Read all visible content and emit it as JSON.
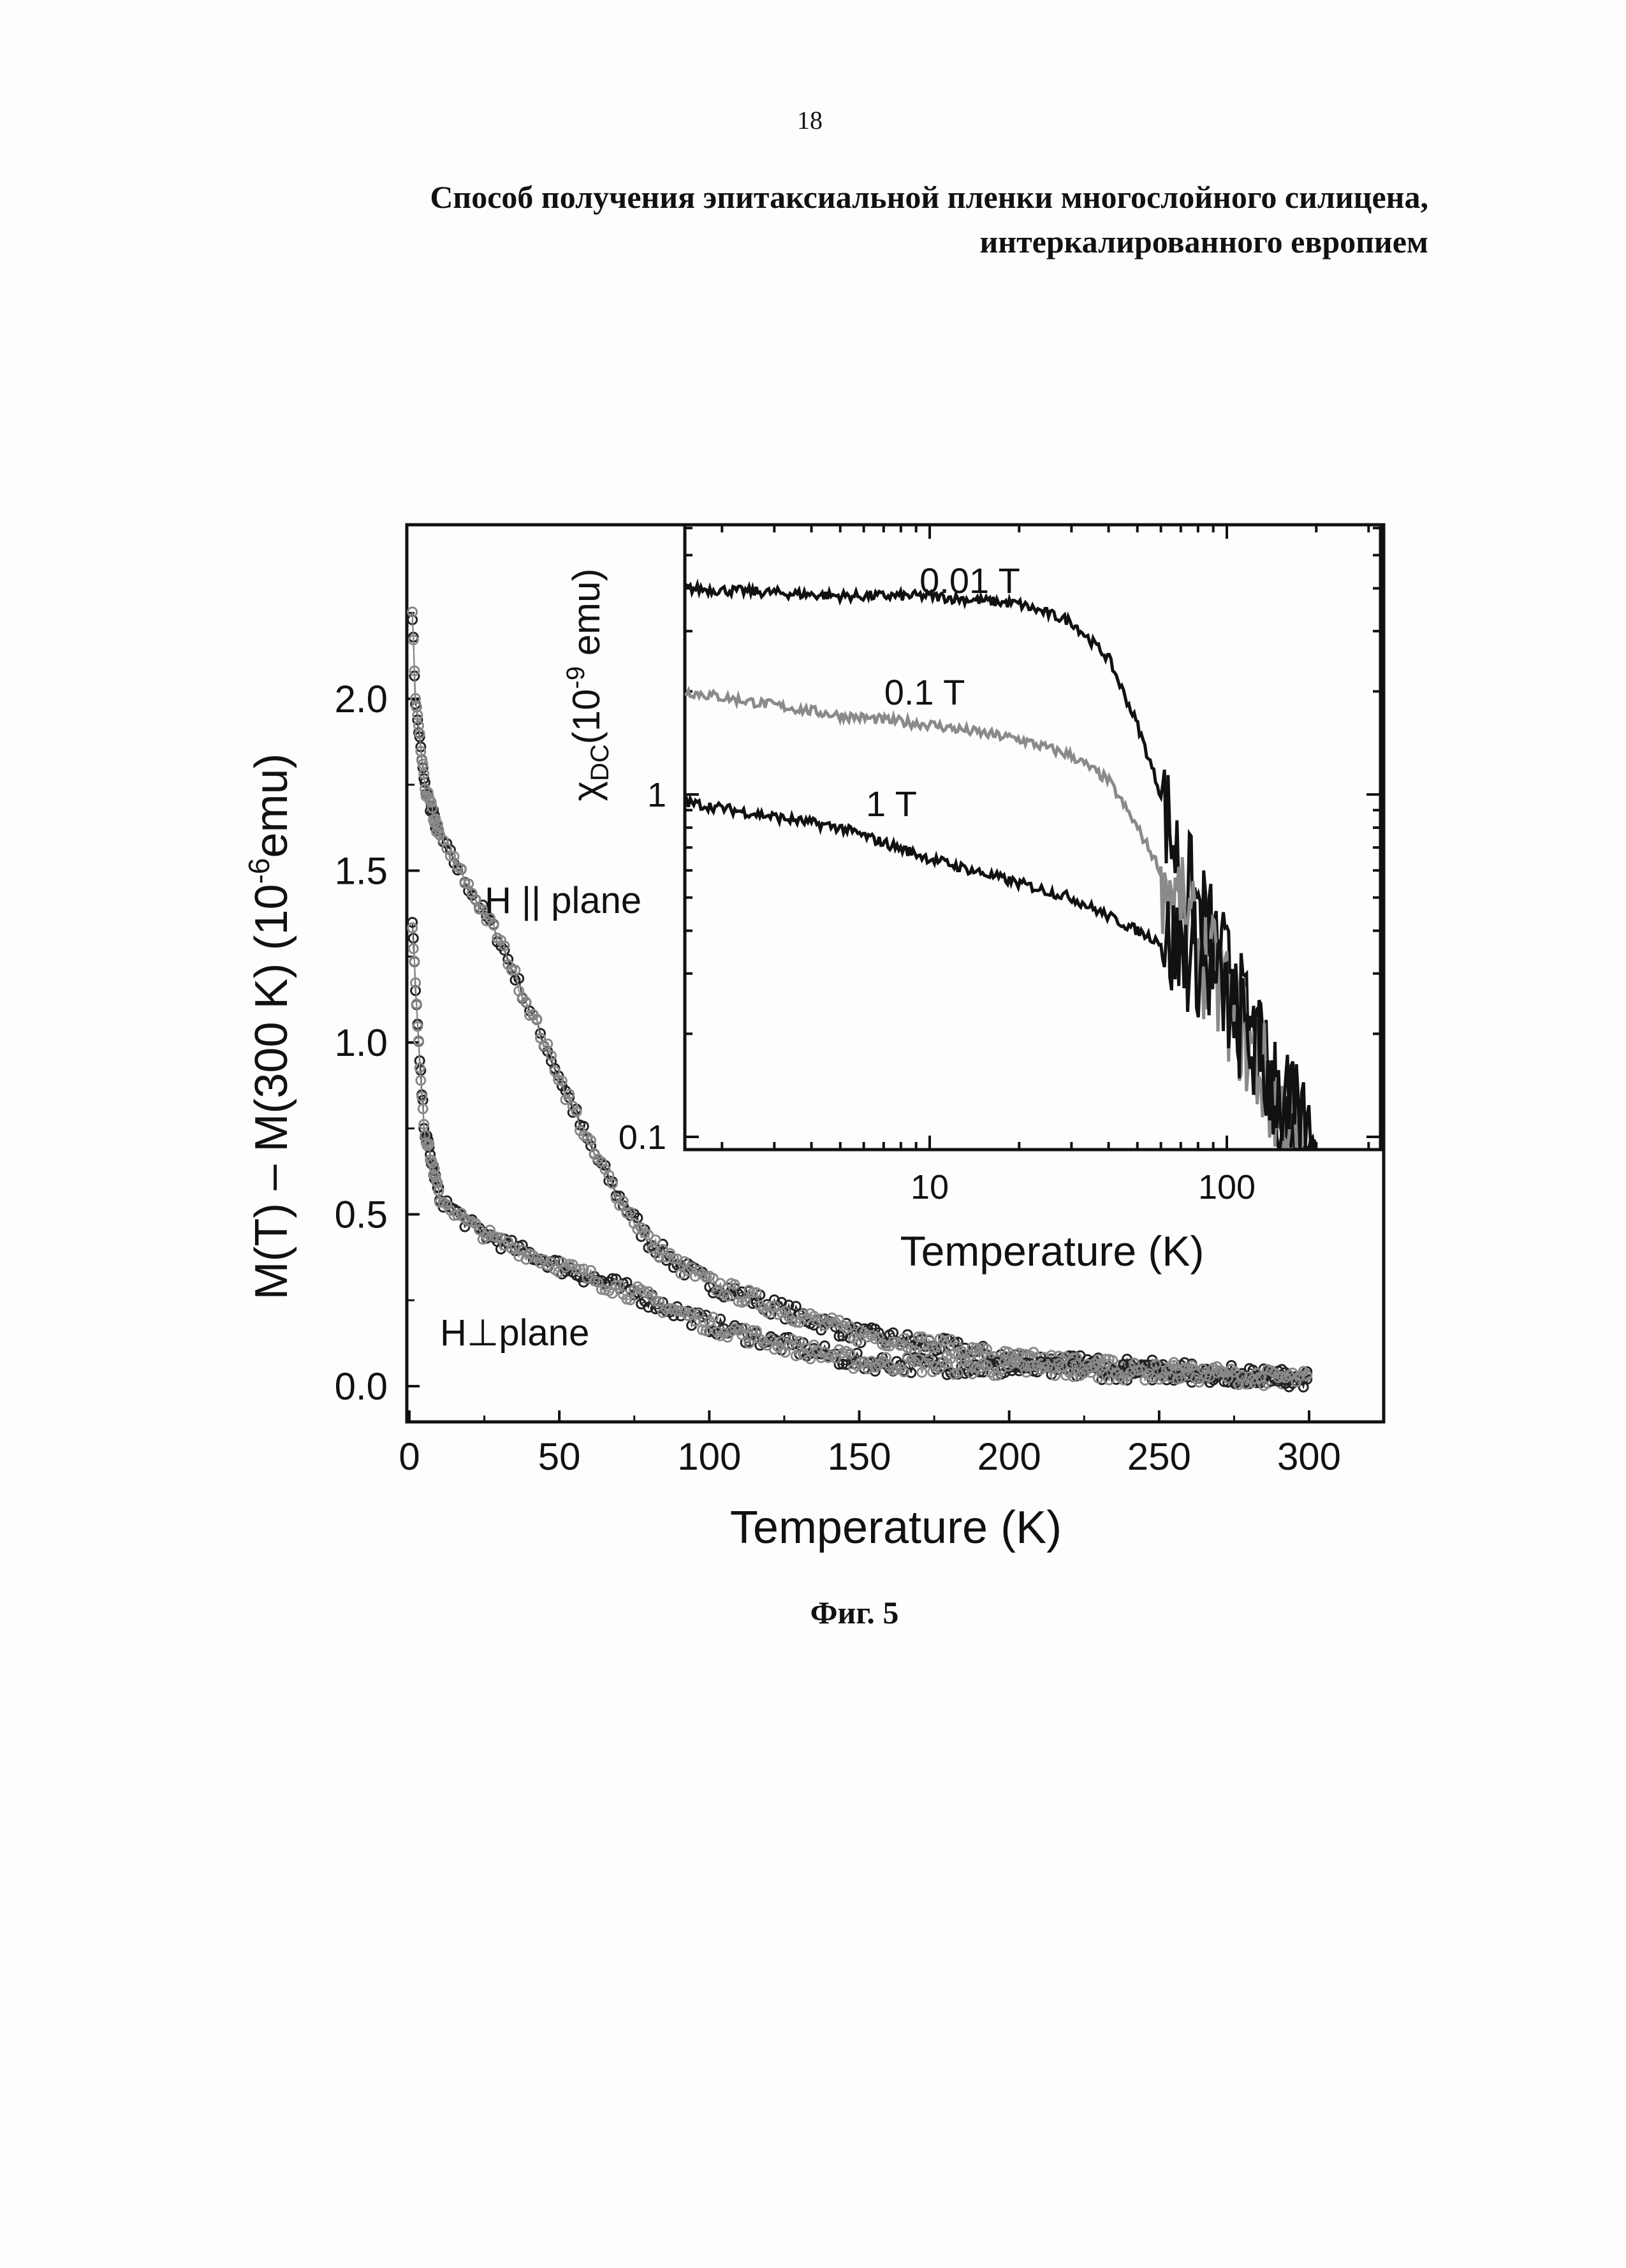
{
  "page_number": "18",
  "title_line1": "Способ получения эпитаксиальной пленки многослойного силицена,",
  "title_line2": "интеркалированного европием",
  "figure_caption": "Фиг. 5",
  "chart_data": [
    {
      "type": "scatter",
      "xlabel": "Temperature (K)",
      "ylabel_main": "M(T) – M(300 K)  (10",
      "ylabel_sup": "-6",
      "ylabel_end": "emu)",
      "xlim": [
        0,
        325
      ],
      "ylim": [
        -0.1,
        2.5
      ],
      "xticks": [
        "0",
        "50",
        "100",
        "150",
        "200",
        "250",
        "300"
      ],
      "yticks": [
        "0.0",
        "0.5",
        "1.0",
        "1.5",
        "2.0"
      ],
      "annotations": {
        "parallel": "H || plane",
        "perp": "H⊥plane"
      },
      "series": [
        {
          "name": "H || plane",
          "points": [
            [
              1,
              2.25
            ],
            [
              2,
              2.0
            ],
            [
              5,
              1.75
            ],
            [
              10,
              1.6
            ],
            [
              20,
              1.45
            ],
            [
              30,
              1.3
            ],
            [
              40,
              1.1
            ],
            [
              50,
              0.9
            ],
            [
              60,
              0.7
            ],
            [
              70,
              0.55
            ],
            [
              80,
              0.42
            ],
            [
              90,
              0.35
            ],
            [
              100,
              0.3
            ],
            [
              125,
              0.22
            ],
            [
              150,
              0.15
            ],
            [
              175,
              0.12
            ],
            [
              200,
              0.08
            ],
            [
              250,
              0.05
            ],
            [
              300,
              0.02
            ]
          ]
        },
        {
          "name": "H⊥plane",
          "points": [
            [
              1,
              1.35
            ],
            [
              3,
              1.0
            ],
            [
              5,
              0.75
            ],
            [
              10,
              0.55
            ],
            [
              20,
              0.47
            ],
            [
              30,
              0.42
            ],
            [
              50,
              0.35
            ],
            [
              75,
              0.27
            ],
            [
              100,
              0.18
            ],
            [
              125,
              0.12
            ],
            [
              150,
              0.07
            ],
            [
              200,
              0.05
            ],
            [
              250,
              0.04
            ],
            [
              300,
              0.02
            ]
          ]
        }
      ]
    },
    {
      "type": "line",
      "inset": true,
      "xscale": "log",
      "yscale": "log",
      "xlabel": "Temperature (K)",
      "ylabel_chi": "χ",
      "ylabel_sub": "DC",
      "ylabel_rest": "(10",
      "ylabel_sup": "-9",
      "ylabel_end": " emu)",
      "xlim": [
        1.5,
        330
      ],
      "ylim": [
        0.09,
        6.2
      ],
      "xticks": [
        "10",
        "100"
      ],
      "yticks": [
        "0.1",
        "1"
      ],
      "series": [
        {
          "name": "0.01 T",
          "color": "#111111",
          "points": [
            [
              1.5,
              4.0
            ],
            [
              5,
              3.8
            ],
            [
              10,
              3.8
            ],
            [
              20,
              3.6
            ],
            [
              30,
              3.2
            ],
            [
              40,
              2.5
            ],
            [
              50,
              1.6
            ],
            [
              60,
              1.0
            ],
            [
              70,
              0.6
            ],
            [
              100,
              0.3
            ],
            [
              150,
              0.12
            ],
            [
              200,
              0.08
            ]
          ]
        },
        {
          "name": "0.1 T",
          "color": "#8a8a8a",
          "points": [
            [
              1.5,
              2.0
            ],
            [
              5,
              1.7
            ],
            [
              10,
              1.6
            ],
            [
              20,
              1.45
            ],
            [
              30,
              1.3
            ],
            [
              40,
              1.1
            ],
            [
              50,
              0.8
            ],
            [
              60,
              0.6
            ],
            [
              80,
              0.35
            ],
            [
              100,
              0.25
            ],
            [
              150,
              0.12
            ],
            [
              180,
              0.09
            ]
          ]
        },
        {
          "name": "1 T",
          "color": "#111111",
          "points": [
            [
              1.5,
              0.95
            ],
            [
              5,
              0.8
            ],
            [
              10,
              0.65
            ],
            [
              20,
              0.55
            ],
            [
              30,
              0.5
            ],
            [
              50,
              0.4
            ],
            [
              80,
              0.33
            ],
            [
              100,
              0.25
            ],
            [
              150,
              0.13
            ],
            [
              200,
              0.09
            ]
          ]
        }
      ]
    }
  ]
}
